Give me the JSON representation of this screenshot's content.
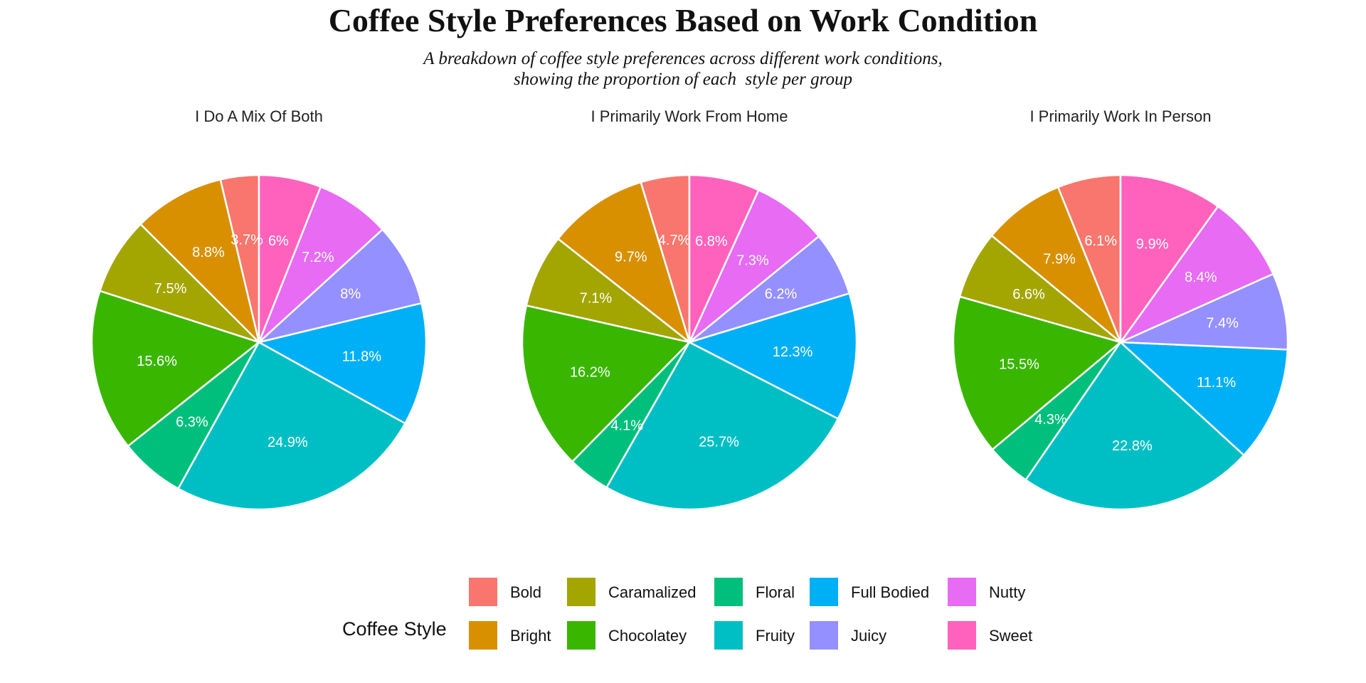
{
  "title": "Coffee Style Preferences Based on Work Condition",
  "subtitle_lines": [
    "A breakdown of coffee style preferences across different work conditions,",
    "showing the proportion of each  style per group"
  ],
  "chart_data": {
    "type": "pie",
    "legend_title": "Coffee Style",
    "legend_position": "bottom",
    "categories": [
      "Bold",
      "Bright",
      "Caramalized",
      "Chocolatey",
      "Floral",
      "Fruity",
      "Full Bodied",
      "Juicy",
      "Nutty",
      "Sweet"
    ],
    "colors": [
      "#F8766D",
      "#D89000",
      "#A3A500",
      "#39B600",
      "#00BF7D",
      "#00BFC4",
      "#00B0F6",
      "#9590FF",
      "#E76BF3",
      "#FF62BC"
    ],
    "facets": [
      {
        "title": "I Do A Mix Of Both",
        "values": [
          3.7,
          8.8,
          7.5,
          15.6,
          6.3,
          24.9,
          11.8,
          8.0,
          7.2,
          6.0
        ],
        "labels": [
          "3.7%",
          "8.8%",
          "7.5%",
          "15.6%",
          "6.3%",
          "24.9%",
          "11.8%",
          "8%",
          "7.2%",
          "6%"
        ]
      },
      {
        "title": "I Primarily Work From Home",
        "values": [
          4.7,
          9.7,
          7.1,
          16.2,
          4.1,
          25.7,
          12.3,
          6.2,
          7.3,
          6.8
        ],
        "labels": [
          "4.7%",
          "9.7%",
          "7.1%",
          "16.2%",
          "4.1%",
          "25.7%",
          "12.3%",
          "6.2%",
          "7.3%",
          "6.8%"
        ]
      },
      {
        "title": "I Primarily Work In Person",
        "values": [
          6.1,
          7.9,
          6.6,
          15.5,
          4.3,
          22.8,
          11.1,
          7.4,
          8.4,
          9.9
        ],
        "labels": [
          "6.1%",
          "7.9%",
          "6.6%",
          "15.5%",
          "4.3%",
          "22.8%",
          "11.1%",
          "7.4%",
          "8.4%",
          "9.9%"
        ]
      }
    ]
  }
}
